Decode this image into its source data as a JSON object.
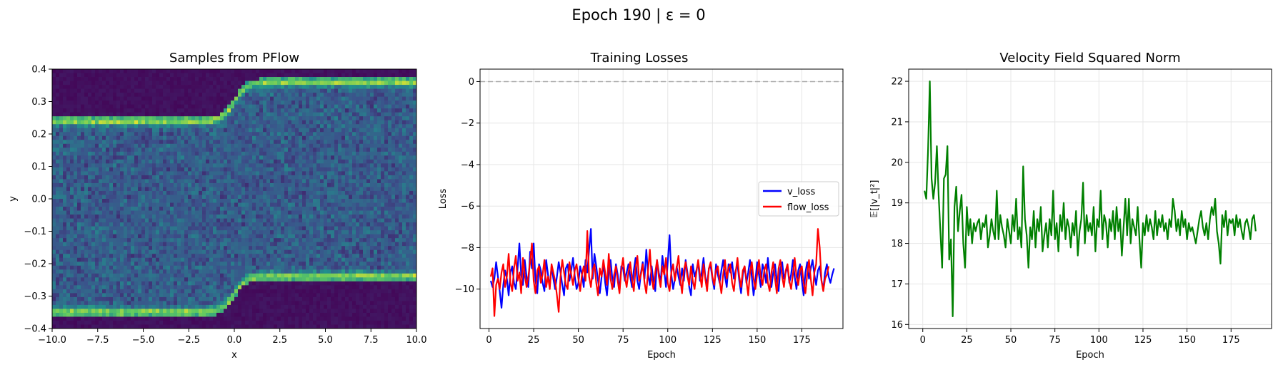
{
  "figure": {
    "suptitle": "Epoch 190 | ε = 0"
  },
  "chart_data": [
    {
      "type": "heatmap",
      "title": "Samples from PFlow",
      "xlabel": "x",
      "ylabel": "y",
      "xlim": [
        -10,
        10
      ],
      "ylim": [
        -0.4,
        0.4
      ],
      "xticks": [
        "−10.0",
        "−7.5",
        "−5.0",
        "−2.5",
        "0.0",
        "2.5",
        "5.0",
        "7.5",
        "10.0"
      ],
      "yticks": [
        "−0.4",
        "−0.3",
        "−0.2",
        "−0.1",
        "0.0",
        "0.1",
        "0.2",
        "0.3",
        "0.4"
      ],
      "colormap": "viridis",
      "description_of_density": {
        "upper_band": {
          "left_y": 0.24,
          "right_y": 0.36,
          "transition_x": 0
        },
        "lower_band": {
          "left_y": -0.35,
          "right_y": -0.24,
          "transition_x": 0
        },
        "empty_regions": [
          "top-left above upper band",
          "bottom-right below lower band"
        ]
      },
      "grid": false
    },
    {
      "type": "line",
      "title": "Training Losses",
      "xlabel": "Epoch",
      "ylabel": "Loss",
      "xlim": [
        -5,
        198
      ],
      "ylim": [
        -11.9,
        0.6
      ],
      "xticks": [
        0,
        25,
        50,
        75,
        100,
        125,
        150,
        175
      ],
      "yticks": [
        0,
        -2,
        -4,
        -6,
        -8,
        -10
      ],
      "reference_line": {
        "y": 0,
        "style": "dashed",
        "color": "#aaaaaa"
      },
      "legend": "center-right",
      "grid": true,
      "series": [
        {
          "name": "v_loss",
          "color": "#0000ff",
          "x_start": 1,
          "values": [
            -9.6,
            -9.9,
            -9.5,
            -8.7,
            -9.4,
            -10.1,
            -10.9,
            -9.8,
            -9.1,
            -9.5,
            -10.3,
            -9.2,
            -8.9,
            -9.7,
            -10.0,
            -9.0,
            -7.8,
            -9.3,
            -9.8,
            -8.6,
            -9.4,
            -9.9,
            -8.2,
            -9.0,
            -7.8,
            -9.6,
            -10.2,
            -8.8,
            -9.1,
            -9.7,
            -10.1,
            -8.6,
            -9.3,
            -9.9,
            -8.9,
            -9.5,
            -10.0,
            -9.4,
            -8.7,
            -9.2,
            -9.8,
            -10.3,
            -9.0,
            -8.8,
            -9.6,
            -9.1,
            -8.5,
            -9.4,
            -10.0,
            -9.7,
            -8.9,
            -9.3,
            -9.9,
            -8.6,
            -9.2,
            -8.1,
            -7.1,
            -9.5,
            -8.3,
            -8.9,
            -9.6,
            -10.2,
            -9.4,
            -8.8,
            -9.7,
            -10.3,
            -9.2,
            -8.6,
            -9.5,
            -9.9,
            -8.8,
            -9.3,
            -10.1,
            -8.9,
            -9.0,
            -9.6,
            -9.2,
            -8.8,
            -9.4,
            -9.9,
            -9.1,
            -8.5,
            -9.6,
            -10.0,
            -9.2,
            -8.7,
            -9.5,
            -8.1,
            -9.3,
            -9.8,
            -8.9,
            -9.6,
            -10.1,
            -8.6,
            -9.2,
            -9.7,
            -8.4,
            -9.1,
            -9.9,
            -8.7,
            -7.4,
            -9.3,
            -10.0,
            -9.5,
            -8.9,
            -9.4,
            -9.8,
            -9.0,
            -9.6,
            -8.6,
            -9.2,
            -9.9,
            -10.3,
            -8.8,
            -9.4,
            -9.1,
            -8.7,
            -9.6,
            -9.2,
            -8.5,
            -9.4,
            -9.8,
            -9.0,
            -8.9,
            -9.5,
            -10.0,
            -8.8,
            -9.3,
            -9.7,
            -9.1,
            -8.6,
            -9.4,
            -9.9,
            -8.8,
            -9.2,
            -8.7,
            -9.5,
            -9.1,
            -8.8,
            -9.6,
            -10.2,
            -9.3,
            -8.9,
            -9.7,
            -9.2,
            -8.6,
            -9.4,
            -10.3,
            -9.6,
            -8.7,
            -9.3,
            -9.9,
            -8.8,
            -9.1,
            -9.7,
            -8.5,
            -9.4,
            -9.9,
            -9.2,
            -8.8,
            -9.6,
            -10.1,
            -9.0,
            -8.7,
            -9.5,
            -9.2,
            -8.9,
            -9.7,
            -9.3,
            -8.6,
            -9.4,
            -10.0,
            -9.1,
            -8.8,
            -9.6,
            -10.3,
            -9.2,
            -8.7,
            -9.5,
            -9.0,
            -8.6,
            -9.3,
            -9.8,
            -9.1,
            -8.9,
            -9.6,
            -10.0,
            -9.2,
            -8.8,
            -9.4,
            -9.7,
            -9.3,
            -9.0
          ]
        },
        {
          "name": "flow_loss",
          "color": "#ff0000",
          "x_start": 1,
          "values": [
            -9.4,
            -9.0,
            -11.3,
            -9.8,
            -9.5,
            -10.0,
            -9.2,
            -8.8,
            -9.9,
            -9.4,
            -8.3,
            -9.7,
            -10.1,
            -9.0,
            -8.4,
            -9.6,
            -9.2,
            -10.2,
            -8.5,
            -9.3,
            -9.9,
            -9.4,
            -8.7,
            -7.8,
            -9.6,
            -10.2,
            -9.1,
            -8.9,
            -9.7,
            -9.3,
            -8.6,
            -9.9,
            -9.4,
            -10.0,
            -8.8,
            -9.2,
            -9.6,
            -10.3,
            -11.1,
            -9.4,
            -8.6,
            -9.2,
            -9.8,
            -10.0,
            -8.7,
            -9.3,
            -9.8,
            -9.1,
            -8.8,
            -9.5,
            -10.1,
            -9.3,
            -8.9,
            -9.6,
            -7.2,
            -9.4,
            -9.9,
            -9.1,
            -8.8,
            -9.7,
            -10.3,
            -9.0,
            -9.4,
            -8.6,
            -9.2,
            -9.8,
            -8.3,
            -9.5,
            -10.0,
            -9.3,
            -8.9,
            -9.6,
            -10.2,
            -9.1,
            -8.5,
            -9.4,
            -9.9,
            -9.2,
            -8.7,
            -9.5,
            -10.1,
            -9.0,
            -8.4,
            -9.6,
            -9.3,
            -8.8,
            -9.7,
            -10.2,
            -9.1,
            -8.1,
            -9.5,
            -10.0,
            -9.2,
            -8.6,
            -9.4,
            -9.9,
            -8.9,
            -9.3,
            -8.5,
            -9.7,
            -10.1,
            -9.2,
            -8.8,
            -9.6,
            -9.0,
            -8.4,
            -9.5,
            -10.2,
            -9.1,
            -8.7,
            -9.4,
            -9.8,
            -8.9,
            -9.6,
            -10.0,
            -9.2,
            -8.6,
            -9.3,
            -9.9,
            -8.8,
            -9.5,
            -10.1,
            -9.0,
            -8.7,
            -9.4,
            -9.8,
            -9.1,
            -8.9,
            -9.6,
            -10.2,
            -9.3,
            -8.6,
            -9.5,
            -9.0,
            -8.8,
            -9.7,
            -10.1,
            -9.2,
            -8.5,
            -9.4,
            -9.9,
            -9.1,
            -8.9,
            -9.6,
            -10.3,
            -9.2,
            -8.7,
            -9.5,
            -10.0,
            -9.3,
            -8.6,
            -9.4,
            -9.8,
            -9.1,
            -8.8,
            -9.7,
            -10.1,
            -9.2,
            -8.7,
            -9.5,
            -10.2,
            -9.0,
            -8.6,
            -9.4,
            -9.9,
            -9.1,
            -8.8,
            -9.6,
            -10.0,
            -9.3,
            -8.5,
            -9.4,
            -9.8,
            -9.1,
            -8.9,
            -9.7,
            -10.2,
            -9.3,
            -8.6,
            -9.5,
            -10.3,
            -9.2,
            -8.8,
            -7.1,
            -8.0,
            -9.6,
            -10.1,
            -9.5,
            -9.3,
            -8.9
          ]
        }
      ]
    },
    {
      "type": "line",
      "title": "Velocity Field Squared Norm",
      "xlabel": "Epoch",
      "ylabel": "𝔼[|v_t|²]",
      "xlim": [
        -8,
        198
      ],
      "ylim": [
        15.9,
        22.3
      ],
      "xticks": [
        0,
        25,
        50,
        75,
        100,
        125,
        150,
        175
      ],
      "yticks": [
        16,
        17,
        18,
        19,
        20,
        21,
        22
      ],
      "grid": true,
      "series": [
        {
          "name": "",
          "color": "#008000",
          "x_start": 1,
          "values": [
            19.3,
            19.1,
            20.3,
            22.0,
            19.6,
            19.1,
            19.5,
            20.4,
            19.2,
            18.3,
            17.4,
            19.6,
            19.7,
            20.4,
            17.6,
            18.1,
            16.2,
            18.9,
            19.4,
            18.3,
            18.8,
            19.2,
            18.0,
            17.4,
            18.9,
            18.2,
            18.6,
            18.0,
            18.5,
            18.3,
            18.5,
            18.6,
            18.1,
            18.5,
            18.4,
            18.7,
            17.9,
            18.2,
            18.6,
            18.3,
            18.1,
            19.3,
            18.1,
            18.7,
            18.4,
            18.2,
            17.9,
            18.6,
            18.3,
            18.0,
            18.7,
            18.3,
            19.1,
            18.1,
            18.4,
            17.9,
            19.9,
            18.6,
            18.2,
            17.4,
            18.4,
            18.1,
            18.8,
            17.9,
            18.6,
            18.3,
            18.9,
            17.8,
            18.2,
            18.5,
            17.9,
            18.6,
            18.2,
            19.3,
            18.1,
            18.5,
            17.8,
            18.7,
            18.3,
            19.0,
            18.1,
            18.6,
            18.4,
            17.9,
            18.5,
            18.2,
            18.8,
            17.7,
            18.3,
            18.6,
            19.5,
            18.0,
            18.7,
            18.3,
            18.5,
            18.2,
            18.9,
            17.8,
            18.6,
            18.4,
            19.3,
            18.1,
            18.7,
            18.5,
            17.9,
            18.6,
            18.3,
            18.8,
            18.1,
            18.9,
            18.3,
            18.6,
            17.7,
            18.4,
            19.1,
            18.2,
            19.1,
            18.0,
            18.6,
            18.4,
            18.2,
            18.9,
            18.1,
            17.4,
            18.5,
            18.2,
            18.7,
            18.3,
            18.6,
            18.4,
            18.1,
            18.8,
            18.2,
            18.6,
            18.4,
            18.7,
            18.3,
            18.5,
            18.1,
            18.6,
            18.4,
            19.1,
            18.8,
            18.3,
            18.6,
            18.2,
            18.8,
            18.4,
            18.6,
            18.1,
            18.5,
            18.3,
            18.4,
            18.2,
            18.0,
            18.3,
            18.6,
            18.8,
            18.4,
            18.2,
            18.5,
            18.1,
            18.6,
            18.9,
            18.7,
            19.1,
            18.3,
            18.0,
            17.5,
            18.7,
            18.4,
            18.8,
            18.2,
            18.6,
            18.5,
            18.6,
            18.2,
            18.7,
            18.4,
            18.6,
            18.3,
            18.1,
            18.5,
            18.6,
            18.4,
            18.1,
            18.6,
            18.7,
            18.3
          ]
        }
      ]
    }
  ]
}
